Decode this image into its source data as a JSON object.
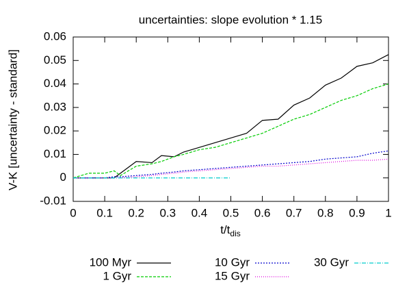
{
  "chart_data": {
    "type": "line",
    "title": "uncertainties: slope evolution * 1.15",
    "ylabel": "V-K [uncertainty - standard]",
    "xlabel": "t/t",
    "xlabel_sub": "dis",
    "x": [
      0,
      0.05,
      0.1,
      0.13,
      0.15,
      0.2,
      0.25,
      0.28,
      0.32,
      0.35,
      0.4,
      0.45,
      0.5,
      0.55,
      0.6,
      0.65,
      0.7,
      0.75,
      0.8,
      0.85,
      0.9,
      0.95,
      1.0
    ],
    "series": [
      {
        "name": "100 Myr",
        "color": "#000000",
        "dash": "",
        "values": [
          0,
          0,
          0,
          0,
          0.002,
          0.007,
          0.0065,
          0.0095,
          0.009,
          0.011,
          0.013,
          0.015,
          0.017,
          0.019,
          0.0245,
          0.025,
          0.031,
          0.034,
          0.0395,
          0.0425,
          0.0475,
          0.049,
          0.0525
        ]
      },
      {
        "name": "1 Gyr",
        "color": "#00cc00",
        "dash": "4,2",
        "values": [
          0,
          0.002,
          0.002,
          0.003,
          0.001,
          0.005,
          0.006,
          0.007,
          0.009,
          0.01,
          0.012,
          0.013,
          0.015,
          0.017,
          0.019,
          0.022,
          0.025,
          0.027,
          0.03,
          0.033,
          0.035,
          0.038,
          0.04
        ]
      },
      {
        "name": "10 Gyr",
        "color": "#0000cc",
        "dash": "2,2",
        "values": [
          0,
          0,
          0,
          0.0005,
          0.0005,
          0.001,
          0.0015,
          0.002,
          0.0025,
          0.003,
          0.0035,
          0.004,
          0.0045,
          0.005,
          0.0055,
          0.006,
          0.0065,
          0.007,
          0.008,
          0.0085,
          0.009,
          0.0105,
          0.0115
        ]
      },
      {
        "name": "15 Gyr",
        "color": "#dd00dd",
        "dash": "1,2",
        "values": [
          0,
          0,
          0,
          0,
          0,
          0.0005,
          0.001,
          0.0015,
          0.002,
          0.0025,
          0.003,
          0.0035,
          0.004,
          0.0045,
          0.005,
          0.005,
          0.0055,
          0.006,
          0.0065,
          0.007,
          0.0075,
          0.0075,
          0.008
        ]
      },
      {
        "name": "30 Gyr",
        "color": "#00cccc",
        "dash": "6,2,1,2",
        "values": [
          0,
          0,
          0,
          0,
          0,
          0,
          0,
          0,
          0,
          0,
          0,
          0,
          0,
          null,
          null,
          null,
          null,
          null,
          null,
          null,
          null,
          null,
          null
        ]
      }
    ],
    "xlim": [
      0,
      1
    ],
    "xticks": [
      0,
      0.1,
      0.2,
      0.3,
      0.4,
      0.5,
      0.6,
      0.7,
      0.8,
      0.9,
      1
    ],
    "ylim": [
      -0.01,
      0.06
    ],
    "yticks": [
      -0.01,
      0,
      0.01,
      0.02,
      0.03,
      0.04,
      0.05,
      0.06
    ],
    "legend": "bottom"
  }
}
